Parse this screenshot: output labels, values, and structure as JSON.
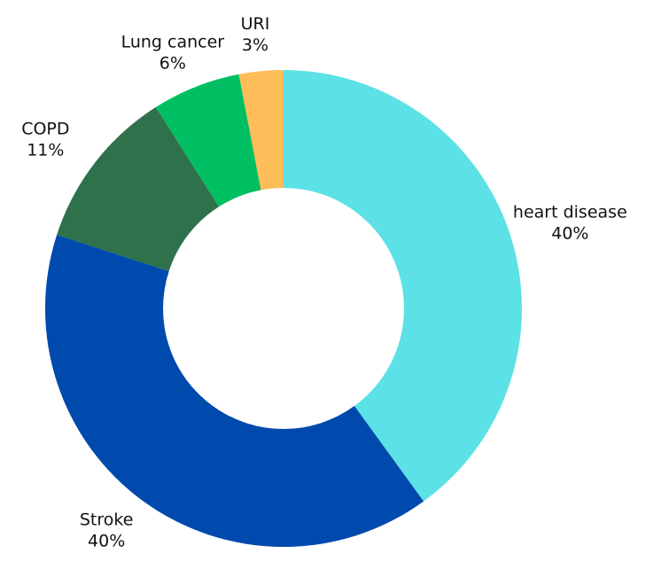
{
  "chart_data": {
    "type": "donut",
    "categories": [
      "heart disease",
      "Stroke",
      "COPD",
      "Lung cancer",
      "URI"
    ],
    "values": [
      40,
      40,
      11,
      6,
      3
    ],
    "value_labels": [
      "40%",
      "40%",
      "11%",
      "6%",
      "3%"
    ],
    "colors": [
      "#5ce1e6",
      "#004aad",
      "#2e714b",
      "#00bf63",
      "#ffbd59"
    ]
  }
}
